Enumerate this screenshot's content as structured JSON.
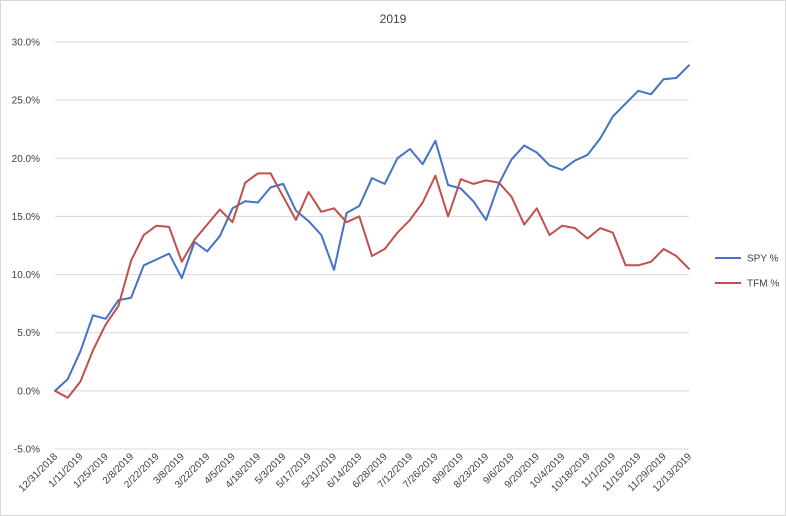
{
  "chart_data": {
    "type": "line",
    "title": "2019",
    "xlabel": "",
    "ylabel": "",
    "ylim": [
      -0.05,
      0.3
    ],
    "y_ticks": [
      "-5.0%",
      "0.0%",
      "5.0%",
      "10.0%",
      "15.0%",
      "20.0%",
      "25.0%",
      "30.0%"
    ],
    "y_tick_values": [
      -0.05,
      0,
      0.05,
      0.1,
      0.15,
      0.2,
      0.25,
      0.3
    ],
    "grid": true,
    "legend_position": "right",
    "x_tick_labels": [
      "12/31/2018",
      "1/11/2019",
      "1/25/2019",
      "2/8/2019",
      "2/22/2019",
      "3/8/2019",
      "3/22/2019",
      "4/5/2019",
      "4/18/2019",
      "5/3/2019",
      "5/17/2019",
      "5/31/2019",
      "6/14/2019",
      "6/28/2019",
      "7/12/2019",
      "7/26/2019",
      "8/9/2019",
      "8/23/2019",
      "9/6/2019",
      "9/20/2019",
      "10/4/2019",
      "10/18/2019",
      "11/1/2019",
      "11/15/2019",
      "11/29/2019",
      "12/13/2019"
    ],
    "series": [
      {
        "name": "SPY %",
        "color": "#4472c4",
        "values": [
          0.0,
          0.01,
          0.034,
          0.065,
          0.062,
          0.078,
          0.08,
          0.108,
          0.113,
          0.118,
          0.097,
          0.128,
          0.12,
          0.133,
          0.157,
          0.163,
          0.162,
          0.175,
          0.178,
          0.155,
          0.146,
          0.134,
          0.104,
          0.153,
          0.159,
          0.183,
          0.178,
          0.2,
          0.208,
          0.195,
          0.215,
          0.177,
          0.174,
          0.163,
          0.147,
          0.178,
          0.199,
          0.211,
          0.205,
          0.194,
          0.19,
          0.198,
          0.203,
          0.217,
          0.236,
          0.247,
          0.258,
          0.255,
          0.268,
          0.269,
          0.28
        ]
      },
      {
        "name": "TFM %",
        "color": "#c0504d",
        "values": [
          0.0,
          -0.006,
          0.008,
          0.035,
          0.057,
          0.073,
          0.112,
          0.134,
          0.142,
          0.141,
          0.111,
          0.13,
          0.143,
          0.156,
          0.145,
          0.179,
          0.187,
          0.187,
          0.167,
          0.147,
          0.171,
          0.154,
          0.157,
          0.145,
          0.15,
          0.116,
          0.122,
          0.136,
          0.147,
          0.162,
          0.185,
          0.15,
          0.182,
          0.178,
          0.181,
          0.179,
          0.167,
          0.143,
          0.157,
          0.134,
          0.142,
          0.14,
          0.131,
          0.14,
          0.136,
          0.108,
          0.108,
          0.111,
          0.122,
          0.116,
          0.105
        ]
      }
    ]
  }
}
